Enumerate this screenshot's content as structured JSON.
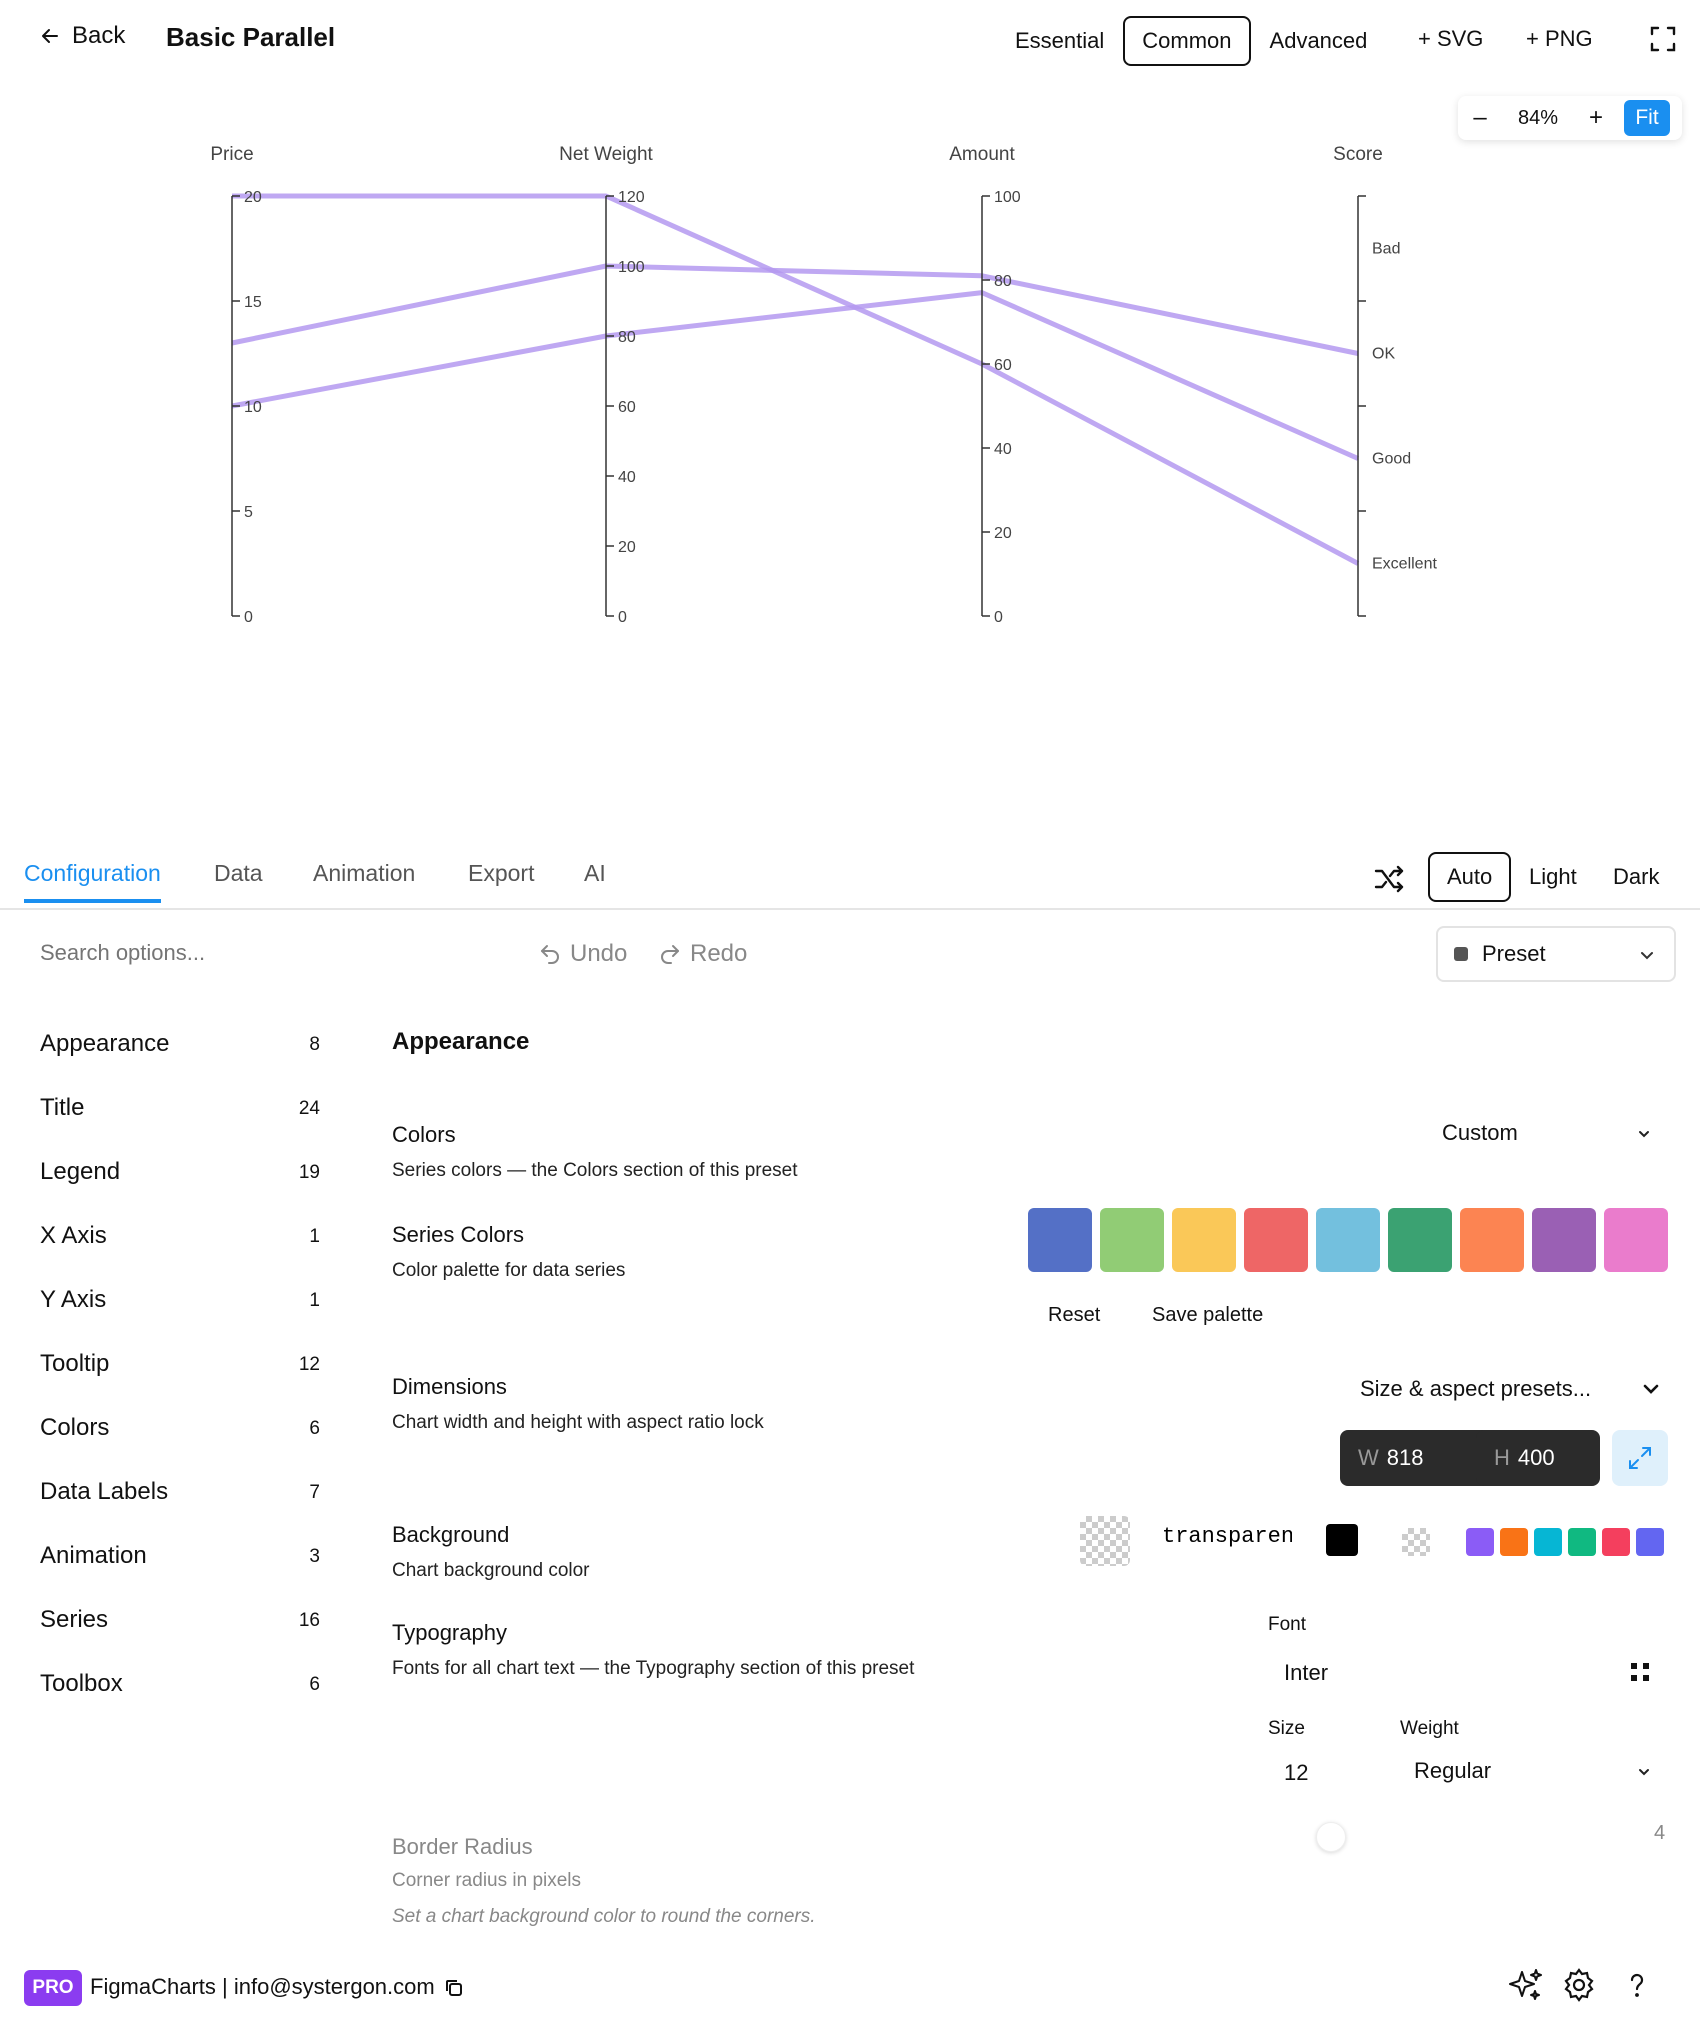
{
  "header": {
    "back_label": "Back",
    "title": "Basic Parallel",
    "modes": [
      "Essential",
      "Common",
      "Advanced"
    ],
    "active_mode": "Common",
    "export_svg": "+ SVG",
    "export_png": "+ PNG"
  },
  "zoom": {
    "minus": "–",
    "value": "84%",
    "plus": "+",
    "fit": "Fit"
  },
  "chart_data": {
    "type": "parallel",
    "axes": [
      {
        "name": "Price",
        "min": 0,
        "max": 20,
        "ticks": [
          "0",
          "5",
          "10",
          "15",
          "20"
        ]
      },
      {
        "name": "Net Weight",
        "min": 0,
        "max": 120,
        "ticks": [
          "0",
          "20",
          "40",
          "60",
          "80",
          "100",
          "120"
        ]
      },
      {
        "name": "Amount",
        "min": 0,
        "max": 100,
        "ticks": [
          "0",
          "20",
          "40",
          "60",
          "80",
          "100"
        ]
      },
      {
        "name": "Score",
        "categories": [
          "Excellent",
          "Good",
          "OK",
          "Bad"
        ]
      }
    ],
    "series": [
      {
        "values": [
          20,
          120,
          60,
          "Excellent"
        ]
      },
      {
        "values": [
          13,
          100,
          81,
          "OK"
        ]
      },
      {
        "values": [
          10,
          80,
          77,
          "Good"
        ]
      }
    ],
    "line_color": "#b499f0"
  },
  "tabs": [
    "Configuration",
    "Data",
    "Animation",
    "Export",
    "AI"
  ],
  "active_tab": "Configuration",
  "theme": {
    "options": [
      "Auto",
      "Light",
      "Dark"
    ],
    "active": "Auto"
  },
  "toolbar": {
    "search_placeholder": "Search options...",
    "undo": "Undo",
    "redo": "Redo",
    "preset": "Preset"
  },
  "sidebar": {
    "items": [
      {
        "label": "Appearance",
        "count": "8"
      },
      {
        "label": "Title",
        "count": "24"
      },
      {
        "label": "Legend",
        "count": "19"
      },
      {
        "label": "X Axis",
        "count": "1"
      },
      {
        "label": "Y Axis",
        "count": "1"
      },
      {
        "label": "Tooltip",
        "count": "12"
      },
      {
        "label": "Colors",
        "count": "6"
      },
      {
        "label": "Data Labels",
        "count": "7"
      },
      {
        "label": "Animation",
        "count": "3"
      },
      {
        "label": "Series",
        "count": "16"
      },
      {
        "label": "Toolbox",
        "count": "6"
      }
    ]
  },
  "content": {
    "section_title": "Appearance",
    "colors": {
      "title": "Colors",
      "desc": "Series colors — the Colors section of this preset",
      "value": "Custom"
    },
    "series_colors": {
      "title": "Series Colors",
      "desc": "Color palette for data series",
      "palette": [
        "#5470c6",
        "#91cc75",
        "#fac858",
        "#ee6666",
        "#73c0de",
        "#3ba272",
        "#fc8452",
        "#9a60b4",
        "#ea7ccc"
      ],
      "reset": "Reset",
      "save": "Save palette"
    },
    "dimensions": {
      "title": "Dimensions",
      "desc": "Chart width and height with aspect ratio lock",
      "presets": "Size & aspect presets...",
      "w_label": "W",
      "width": "818",
      "h_label": "H",
      "height": "400"
    },
    "background": {
      "title": "Background",
      "desc": "Chart background color",
      "value": "transparent",
      "swatches": [
        "#8b5cf6",
        "#f97316",
        "#06b6d4",
        "#10b981",
        "#f43f5e",
        "#6366f1"
      ]
    },
    "typography": {
      "title": "Typography",
      "desc": "Fonts for all chart text — the Typography section of this preset",
      "font_label": "Font",
      "font_value": "Inter",
      "size_label": "Size",
      "size_value": "12",
      "weight_label": "Weight",
      "weight_value": "Regular"
    },
    "border_radius": {
      "title": "Border Radius",
      "desc": "Corner radius in pixels",
      "note": "Set a chart background color to round the corners.",
      "value": "4"
    }
  },
  "footer": {
    "badge": "PRO",
    "text": "FigmaCharts | info@systergon.com"
  }
}
